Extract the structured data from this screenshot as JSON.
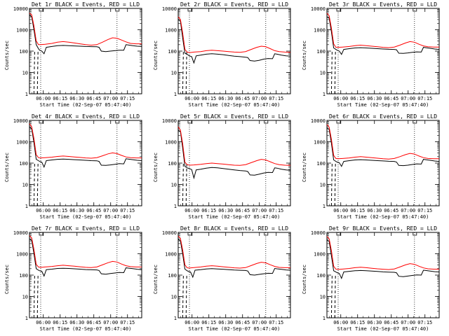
{
  "colors": {
    "events": "#000000",
    "lld": "#ff0000",
    "axis": "#000000",
    "background": "#ffffff"
  },
  "panel_defaults": {
    "type": "line",
    "ylabel": "Counts/sec",
    "xlabel": "Start Time (02-Sep-07 05:47:40)",
    "yscale": "log",
    "ylim": [
      1,
      10000
    ],
    "y_ticks": [
      1,
      10,
      100,
      1000,
      10000
    ],
    "y_ticklabels": [
      "1",
      "10",
      "100",
      "1000",
      "10000"
    ],
    "xlim_minutes": [
      0,
      100
    ],
    "x_ticks_minutes": [
      12.33,
      27.33,
      42.33,
      57.33,
      72.33,
      87.33
    ],
    "x_ticklabels": [
      "06:00",
      "06:15",
      "06:30",
      "06:45",
      "07:00",
      "07:15"
    ],
    "grid": false,
    "dotted_vlines_minutes": [
      10,
      78
    ]
  },
  "chart_data": [
    {
      "title": "Det 1r BLACK = Events, RED = LLD",
      "series": [
        {
          "name": "Events",
          "x": [
            0,
            2,
            4,
            6,
            8,
            9,
            11,
            13,
            15,
            20,
            25,
            30,
            35,
            40,
            45,
            50,
            55,
            60,
            62,
            64,
            68,
            72,
            76,
            80,
            84,
            86,
            88,
            92,
            96,
            100
          ],
          "y": [
            5000,
            4000,
            1000,
            200,
            130,
            110,
            100,
            75,
            150,
            165,
            180,
            185,
            180,
            175,
            170,
            165,
            162,
            160,
            150,
            100,
            95,
            100,
            105,
            110,
            110,
            200,
            195,
            180,
            170,
            165
          ]
        },
        {
          "name": "LLD",
          "x": [
            0,
            2,
            4,
            6,
            8,
            10,
            14,
            20,
            25,
            30,
            35,
            40,
            45,
            50,
            55,
            60,
            65,
            70,
            74,
            78,
            82,
            86,
            90,
            95,
            100
          ],
          "y": [
            6000,
            5000,
            1500,
            300,
            200,
            200,
            210,
            230,
            260,
            280,
            260,
            240,
            220,
            200,
            190,
            200,
            260,
            350,
            420,
            400,
            330,
            270,
            230,
            220,
            220
          ]
        }
      ]
    },
    {
      "title": "Det 2r BLACK = Events, RED = LLD",
      "series": [
        {
          "name": "Events",
          "x": [
            0,
            2,
            4,
            6,
            8,
            10,
            12,
            14,
            16,
            20,
            25,
            30,
            35,
            40,
            45,
            50,
            55,
            60,
            62,
            64,
            68,
            72,
            76,
            80,
            84,
            86,
            88,
            92,
            96,
            100
          ],
          "y": [
            3000,
            2500,
            400,
            80,
            70,
            60,
            55,
            28,
            60,
            65,
            72,
            75,
            72,
            68,
            62,
            58,
            55,
            52,
            50,
            36,
            34,
            37,
            42,
            45,
            44,
            75,
            72,
            65,
            60,
            58
          ]
        },
        {
          "name": "LLD",
          "x": [
            0,
            2,
            4,
            6,
            8,
            10,
            14,
            20,
            25,
            30,
            35,
            40,
            45,
            50,
            55,
            60,
            65,
            70,
            74,
            78,
            82,
            86,
            90,
            95,
            100
          ],
          "y": [
            4000,
            3000,
            700,
            120,
            90,
            85,
            90,
            95,
            105,
            110,
            105,
            100,
            95,
            90,
            88,
            95,
            120,
            150,
            170,
            160,
            130,
            105,
            95,
            90,
            88
          ]
        }
      ]
    },
    {
      "title": "Det 3r BLACK = Events, RED = LLD",
      "series": [
        {
          "name": "Events",
          "x": [
            0,
            2,
            4,
            6,
            8,
            9,
            11,
            13,
            15,
            20,
            25,
            30,
            35,
            40,
            45,
            50,
            55,
            60,
            62,
            64,
            68,
            72,
            76,
            80,
            84,
            86,
            88,
            92,
            96,
            100
          ],
          "y": [
            4000,
            3500,
            800,
            140,
            120,
            110,
            100,
            70,
            120,
            130,
            140,
            145,
            140,
            135,
            130,
            125,
            122,
            120,
            115,
            80,
            78,
            82,
            88,
            92,
            90,
            150,
            145,
            135,
            125,
            120
          ]
        },
        {
          "name": "LLD",
          "x": [
            0,
            2,
            4,
            6,
            8,
            10,
            14,
            20,
            25,
            30,
            35,
            40,
            45,
            50,
            55,
            60,
            65,
            70,
            74,
            78,
            82,
            86,
            90,
            95,
            100
          ],
          "y": [
            6000,
            4500,
            1200,
            220,
            150,
            150,
            155,
            165,
            180,
            190,
            180,
            170,
            160,
            150,
            145,
            155,
            190,
            240,
            280,
            260,
            210,
            175,
            160,
            155,
            155
          ]
        }
      ]
    },
    {
      "title": "Det 4r BLACK = Events, RED = LLD",
      "series": [
        {
          "name": "Events",
          "x": [
            0,
            2,
            4,
            6,
            8,
            9,
            11,
            13,
            15,
            20,
            25,
            30,
            35,
            40,
            45,
            50,
            55,
            60,
            62,
            64,
            68,
            72,
            76,
            80,
            84,
            86,
            88,
            92,
            96,
            100
          ],
          "y": [
            5000,
            4000,
            900,
            150,
            130,
            120,
            110,
            65,
            130,
            140,
            150,
            155,
            150,
            145,
            140,
            135,
            130,
            128,
            120,
            80,
            78,
            82,
            88,
            95,
            92,
            160,
            155,
            145,
            135,
            130
          ]
        },
        {
          "name": "LLD",
          "x": [
            0,
            2,
            4,
            6,
            8,
            10,
            14,
            20,
            25,
            30,
            35,
            40,
            45,
            50,
            55,
            60,
            65,
            70,
            74,
            78,
            82,
            86,
            90,
            95,
            100
          ],
          "y": [
            7000,
            5000,
            1400,
            250,
            180,
            175,
            180,
            190,
            205,
            215,
            205,
            195,
            185,
            175,
            170,
            180,
            220,
            270,
            300,
            280,
            230,
            195,
            180,
            175,
            175
          ]
        }
      ]
    },
    {
      "title": "Det 5r BLACK = Events, RED = LLD",
      "series": [
        {
          "name": "Events",
          "x": [
            0,
            2,
            4,
            6,
            8,
            10,
            12,
            14,
            16,
            20,
            25,
            30,
            35,
            40,
            45,
            50,
            55,
            60,
            62,
            64,
            68,
            72,
            76,
            80,
            84,
            86,
            88,
            92,
            96,
            100
          ],
          "y": [
            3500,
            3000,
            500,
            70,
            60,
            55,
            50,
            20,
            48,
            52,
            58,
            62,
            60,
            56,
            52,
            48,
            45,
            43,
            40,
            28,
            27,
            30,
            34,
            37,
            36,
            60,
            58,
            52,
            48,
            46
          ]
        },
        {
          "name": "LLD",
          "x": [
            0,
            2,
            4,
            6,
            8,
            10,
            14,
            20,
            25,
            30,
            35,
            40,
            45,
            50,
            55,
            60,
            65,
            70,
            74,
            78,
            82,
            86,
            90,
            95,
            100
          ],
          "y": [
            5000,
            3500,
            800,
            110,
            85,
            80,
            82,
            88,
            95,
            100,
            95,
            90,
            85,
            80,
            78,
            85,
            105,
            130,
            150,
            140,
            115,
            95,
            85,
            80,
            78
          ]
        }
      ]
    },
    {
      "title": "Det 6r BLACK = Events, RED = LLD",
      "series": [
        {
          "name": "Events",
          "x": [
            0,
            2,
            4,
            6,
            8,
            9,
            11,
            13,
            15,
            20,
            25,
            30,
            35,
            40,
            45,
            50,
            55,
            60,
            62,
            64,
            68,
            72,
            76,
            80,
            84,
            86,
            88,
            92,
            96,
            100
          ],
          "y": [
            4500,
            3800,
            850,
            140,
            120,
            112,
            105,
            70,
            120,
            130,
            140,
            145,
            140,
            135,
            130,
            126,
            122,
            120,
            112,
            78,
            76,
            80,
            86,
            92,
            90,
            150,
            145,
            135,
            125,
            120
          ]
        },
        {
          "name": "LLD",
          "x": [
            0,
            2,
            4,
            6,
            8,
            10,
            14,
            20,
            25,
            30,
            35,
            40,
            45,
            50,
            55,
            60,
            65,
            70,
            74,
            78,
            82,
            86,
            90,
            95,
            100
          ],
          "y": [
            6500,
            4800,
            1300,
            230,
            165,
            160,
            165,
            175,
            190,
            200,
            190,
            180,
            170,
            160,
            155,
            165,
            200,
            250,
            285,
            265,
            215,
            180,
            165,
            160,
            160
          ]
        }
      ]
    },
    {
      "title": "Det 7r BLACK = Events, RED = LLD",
      "series": [
        {
          "name": "Events",
          "x": [
            0,
            2,
            4,
            6,
            8,
            9,
            11,
            13,
            15,
            20,
            25,
            30,
            35,
            40,
            45,
            50,
            55,
            60,
            62,
            64,
            68,
            72,
            76,
            80,
            84,
            86,
            88,
            92,
            96,
            100
          ],
          "y": [
            5000,
            4200,
            1000,
            200,
            170,
            160,
            150,
            90,
            180,
            190,
            205,
            210,
            205,
            198,
            190,
            182,
            178,
            175,
            165,
            115,
            110,
            118,
            125,
            132,
            130,
            220,
            212,
            200,
            188,
            180
          ]
        },
        {
          "name": "LLD",
          "x": [
            0,
            2,
            4,
            6,
            8,
            10,
            14,
            20,
            25,
            30,
            35,
            40,
            45,
            50,
            55,
            60,
            65,
            70,
            74,
            78,
            82,
            86,
            90,
            95,
            100
          ],
          "y": [
            7000,
            5500,
            1600,
            320,
            240,
            230,
            240,
            255,
            275,
            290,
            275,
            260,
            245,
            232,
            225,
            240,
            300,
            380,
            440,
            410,
            330,
            275,
            250,
            240,
            240
          ]
        }
      ]
    },
    {
      "title": "Det 8r BLACK = Events, RED = LLD",
      "series": [
        {
          "name": "Events",
          "x": [
            0,
            2,
            4,
            6,
            8,
            9,
            11,
            13,
            15,
            20,
            25,
            30,
            35,
            40,
            45,
            50,
            55,
            60,
            62,
            64,
            68,
            72,
            76,
            80,
            84,
            86,
            88,
            92,
            96,
            100
          ],
          "y": [
            4800,
            4000,
            950,
            190,
            160,
            150,
            140,
            80,
            170,
            180,
            195,
            200,
            195,
            188,
            180,
            172,
            168,
            165,
            155,
            105,
            100,
            108,
            115,
            122,
            120,
            205,
            198,
            186,
            175,
            168
          ]
        },
        {
          "name": "LLD",
          "x": [
            0,
            2,
            4,
            6,
            8,
            10,
            14,
            20,
            25,
            30,
            35,
            40,
            45,
            50,
            55,
            60,
            65,
            70,
            74,
            78,
            82,
            86,
            90,
            95,
            100
          ],
          "y": [
            6800,
            5200,
            1500,
            300,
            220,
            215,
            225,
            240,
            260,
            275,
            260,
            245,
            232,
            220,
            212,
            225,
            280,
            350,
            400,
            375,
            305,
            255,
            230,
            222,
            222
          ]
        }
      ]
    },
    {
      "title": "Det 9r BLACK = Events, RED = LLD",
      "series": [
        {
          "name": "Events",
          "x": [
            0,
            2,
            4,
            6,
            8,
            9,
            11,
            13,
            15,
            20,
            25,
            30,
            35,
            40,
            45,
            50,
            55,
            60,
            62,
            64,
            68,
            72,
            76,
            80,
            84,
            86,
            88,
            92,
            96,
            100
          ],
          "y": [
            4500,
            3800,
            800,
            160,
            140,
            130,
            120,
            70,
            140,
            150,
            160,
            165,
            160,
            155,
            148,
            142,
            138,
            135,
            128,
            88,
            85,
            90,
            96,
            102,
            100,
            170,
            165,
            155,
            145,
            140
          ]
        },
        {
          "name": "LLD",
          "x": [
            0,
            2,
            4,
            6,
            8,
            10,
            14,
            20,
            25,
            30,
            35,
            40,
            45,
            50,
            55,
            60,
            65,
            70,
            74,
            78,
            82,
            86,
            90,
            95,
            100
          ],
          "y": [
            6500,
            5000,
            1400,
            260,
            190,
            185,
            192,
            205,
            222,
            235,
            222,
            210,
            198,
            188,
            182,
            195,
            240,
            300,
            345,
            320,
            260,
            218,
            198,
            190,
            190
          ]
        }
      ]
    }
  ]
}
